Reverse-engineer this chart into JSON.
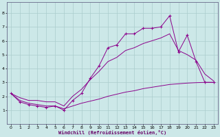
{
  "xlabel": "Windchill (Refroidissement éolien,°C)",
  "bg_color": "#cce8e8",
  "line_color": "#8B008B",
  "grid_color": "#aacccc",
  "xlim": [
    -0.5,
    23.5
  ],
  "ylim": [
    0,
    8.8
  ],
  "xticks": [
    0,
    1,
    2,
    3,
    4,
    5,
    6,
    7,
    8,
    9,
    10,
    11,
    12,
    13,
    14,
    15,
    16,
    17,
    18,
    19,
    20,
    21,
    22,
    23
  ],
  "yticks": [
    1,
    2,
    3,
    4,
    5,
    6,
    7,
    8
  ],
  "x_main": [
    0,
    1,
    2,
    3,
    4,
    5,
    6,
    7,
    8,
    9,
    10,
    11,
    12,
    13,
    14,
    15,
    16,
    17,
    18,
    19,
    20,
    21,
    22,
    23
  ],
  "y_main": [
    2.2,
    1.6,
    1.4,
    1.3,
    1.2,
    1.3,
    1.0,
    1.7,
    2.2,
    3.3,
    4.2,
    5.5,
    5.7,
    6.5,
    6.5,
    6.9,
    6.9,
    7.0,
    7.8,
    5.2,
    6.4,
    4.5,
    3.0,
    3.0
  ],
  "x_upper": [
    0,
    1,
    2,
    3,
    4,
    5,
    6,
    7,
    8,
    9,
    10,
    11,
    12,
    13,
    14,
    15,
    16,
    17,
    18,
    19,
    20,
    21,
    22,
    23
  ],
  "y_upper": [
    2.2,
    1.9,
    1.7,
    1.7,
    1.6,
    1.6,
    1.3,
    2.0,
    2.5,
    3.2,
    3.8,
    4.5,
    4.8,
    5.3,
    5.5,
    5.8,
    6.0,
    6.2,
    6.5,
    5.3,
    5.0,
    4.6,
    3.6,
    3.1
  ],
  "x_lower": [
    0,
    1,
    2,
    3,
    4,
    5,
    6,
    7,
    8,
    9,
    10,
    11,
    12,
    13,
    14,
    15,
    16,
    17,
    18,
    19,
    20,
    21,
    22,
    23
  ],
  "y_lower": [
    2.2,
    1.7,
    1.5,
    1.4,
    1.3,
    1.3,
    1.1,
    1.3,
    1.5,
    1.65,
    1.8,
    2.0,
    2.15,
    2.3,
    2.4,
    2.55,
    2.65,
    2.75,
    2.85,
    2.9,
    2.95,
    2.98,
    3.0,
    3.0
  ]
}
